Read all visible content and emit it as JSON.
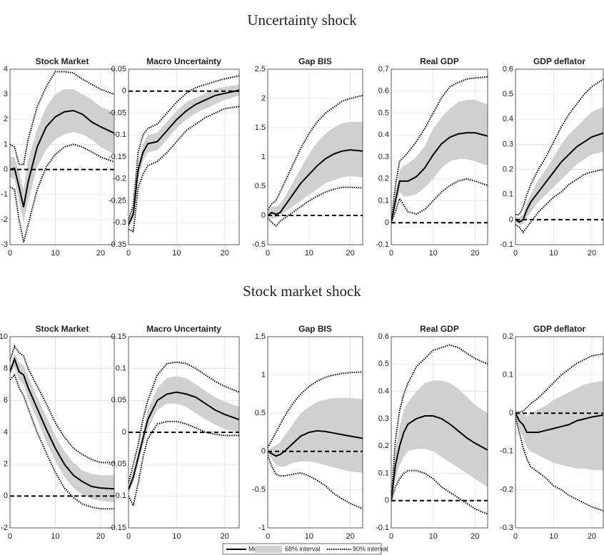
{
  "sections": [
    {
      "title": "Uncertainty shock"
    },
    {
      "title": "Stock market shock"
    }
  ],
  "legend": [
    {
      "name": "Median",
      "color": "#000000"
    },
    {
      "name": "68% interval",
      "color": "#d0d0d0"
    },
    {
      "name": "90% interval",
      "color": "#000000"
    }
  ],
  "chart_data": [
    {
      "type": "line",
      "title": "Stock Market",
      "x": [
        0,
        1,
        2,
        3,
        4,
        6,
        8,
        10,
        12,
        14,
        16,
        18,
        20,
        23
      ],
      "xlim": [
        0,
        23
      ],
      "xticks": [
        0,
        10,
        20
      ],
      "ylim": [
        -3,
        4
      ],
      "yticks": [
        -3,
        -2,
        -1,
        0,
        1,
        2,
        3,
        4
      ],
      "grid": true,
      "zero_line": 0,
      "median": [
        0,
        0.05,
        -0.7,
        -1.5,
        -0.5,
        0.9,
        1.7,
        2.1,
        2.3,
        2.35,
        2.2,
        1.9,
        1.7,
        1.45
      ],
      "lo68": [
        -0.3,
        -0.4,
        -1.3,
        -2.1,
        -1.3,
        0.1,
        0.8,
        1.2,
        1.4,
        1.5,
        1.4,
        1.2,
        0.9,
        0.6
      ],
      "hi68": [
        0.5,
        0.5,
        -0.1,
        -0.8,
        0.4,
        1.6,
        2.5,
        3.0,
        3.2,
        3.2,
        3.0,
        2.8,
        2.5,
        2.3
      ],
      "lo90": [
        -0.7,
        -0.8,
        -2.0,
        -2.9,
        -2.2,
        -0.8,
        0.1,
        0.6,
        0.9,
        1.0,
        0.9,
        0.7,
        0.5,
        0.3
      ],
      "hi90": [
        1.0,
        0.9,
        0.2,
        0.2,
        1.2,
        2.5,
        3.3,
        3.9,
        3.9,
        3.85,
        3.6,
        3.4,
        3.2,
        3.0
      ]
    },
    {
      "type": "line",
      "title": "Macro Uncertainty",
      "x": [
        0,
        1,
        2,
        3,
        4,
        6,
        8,
        10,
        12,
        14,
        16,
        18,
        20,
        23
      ],
      "xlim": [
        0,
        23
      ],
      "xticks": [
        0,
        10,
        20
      ],
      "ylim": [
        -0.35,
        0.05
      ],
      "yticks": [
        -0.35,
        -0.3,
        -0.25,
        -0.2,
        -0.15,
        -0.1,
        -0.05,
        0,
        0.05
      ],
      "grid": true,
      "zero_line": 0,
      "median": [
        -0.305,
        -0.28,
        -0.18,
        -0.14,
        -0.12,
        -0.115,
        -0.09,
        -0.065,
        -0.045,
        -0.03,
        -0.02,
        -0.01,
        -0.005,
        0.002
      ],
      "lo68": [
        -0.31,
        -0.29,
        -0.2,
        -0.16,
        -0.14,
        -0.135,
        -0.11,
        -0.085,
        -0.065,
        -0.05,
        -0.04,
        -0.03,
        -0.02,
        -0.01
      ],
      "hi68": [
        -0.3,
        -0.27,
        -0.16,
        -0.12,
        -0.1,
        -0.095,
        -0.07,
        -0.045,
        -0.025,
        -0.015,
        -0.005,
        0.005,
        0.01,
        0.015
      ],
      "lo90": [
        -0.315,
        -0.32,
        -0.22,
        -0.19,
        -0.17,
        -0.16,
        -0.14,
        -0.115,
        -0.09,
        -0.075,
        -0.06,
        -0.05,
        -0.04,
        -0.035
      ],
      "hi90": [
        -0.295,
        -0.26,
        -0.14,
        -0.1,
        -0.085,
        -0.075,
        -0.05,
        -0.025,
        -0.005,
        0.008,
        0.015,
        0.022,
        0.028,
        0.035
      ]
    },
    {
      "type": "line",
      "title": "Gap BIS",
      "x": [
        0,
        1,
        2,
        3,
        4,
        6,
        8,
        10,
        12,
        14,
        16,
        18,
        20,
        23
      ],
      "xlim": [
        0,
        23
      ],
      "xticks": [
        0,
        10,
        20
      ],
      "ylim": [
        -0.5,
        2.5
      ],
      "yticks": [
        -0.5,
        0,
        0.5,
        1,
        1.5,
        2,
        2.5
      ],
      "grid": true,
      "zero_line": 0,
      "median": [
        0,
        0.05,
        0.02,
        0.05,
        0.15,
        0.35,
        0.55,
        0.7,
        0.85,
        0.97,
        1.05,
        1.1,
        1.12,
        1.1
      ],
      "lo68": [
        -0.05,
        -0.05,
        -0.05,
        -0.02,
        0.05,
        0.15,
        0.25,
        0.35,
        0.45,
        0.55,
        0.6,
        0.65,
        0.67,
        0.65
      ],
      "hi68": [
        0.1,
        0.15,
        0.15,
        0.2,
        0.3,
        0.55,
        0.8,
        1.05,
        1.25,
        1.4,
        1.5,
        1.58,
        1.6,
        1.6
      ],
      "lo90": [
        -0.05,
        -0.12,
        -0.18,
        -0.1,
        -0.05,
        0.05,
        0.15,
        0.25,
        0.33,
        0.4,
        0.45,
        0.48,
        0.48,
        0.47
      ],
      "hi90": [
        0.1,
        0.2,
        0.25,
        0.4,
        0.55,
        0.85,
        1.15,
        1.4,
        1.6,
        1.75,
        1.85,
        1.95,
        2.0,
        2.05
      ]
    },
    {
      "type": "line",
      "title": "Real GDP",
      "x": [
        0,
        1,
        2,
        3,
        4,
        6,
        8,
        10,
        12,
        14,
        16,
        18,
        20,
        23
      ],
      "xlim": [
        0,
        23
      ],
      "xticks": [
        0,
        10,
        20
      ],
      "ylim": [
        -0.1,
        0.7
      ],
      "yticks": [
        -0.1,
        0,
        0.1,
        0.2,
        0.3,
        0.4,
        0.5,
        0.6,
        0.7
      ],
      "grid": true,
      "zero_line": 0,
      "median": [
        0,
        0.1,
        0.19,
        0.19,
        0.19,
        0.21,
        0.25,
        0.31,
        0.36,
        0.39,
        0.405,
        0.41,
        0.41,
        0.395
      ],
      "lo68": [
        0,
        0.07,
        0.14,
        0.12,
        0.12,
        0.13,
        0.16,
        0.2,
        0.25,
        0.28,
        0.29,
        0.29,
        0.28,
        0.26
      ],
      "hi68": [
        0,
        0.13,
        0.24,
        0.26,
        0.27,
        0.3,
        0.35,
        0.43,
        0.48,
        0.52,
        0.55,
        0.56,
        0.56,
        0.54
      ],
      "lo90": [
        0,
        0.05,
        0.11,
        0.08,
        0.05,
        0.04,
        0.06,
        0.1,
        0.14,
        0.17,
        0.19,
        0.2,
        0.19,
        0.17
      ],
      "hi90": [
        0,
        0.17,
        0.28,
        0.3,
        0.32,
        0.37,
        0.43,
        0.5,
        0.57,
        0.62,
        0.64,
        0.655,
        0.66,
        0.665
      ]
    },
    {
      "type": "line",
      "title": "GDP deflator",
      "x": [
        0,
        1,
        2,
        3,
        4,
        6,
        8,
        10,
        12,
        14,
        16,
        18,
        20,
        23
      ],
      "xlim": [
        0,
        23
      ],
      "xticks": [
        0,
        10,
        20
      ],
      "ylim": [
        -0.1,
        0.6
      ],
      "yticks": [
        -0.1,
        0,
        0.1,
        0.2,
        0.3,
        0.4,
        0.5,
        0.6
      ],
      "grid": true,
      "zero_line": 0,
      "median": [
        0,
        -0.01,
        0.0,
        0.04,
        0.07,
        0.11,
        0.15,
        0.19,
        0.23,
        0.26,
        0.29,
        0.31,
        0.33,
        0.345
      ],
      "lo68": [
        -0.01,
        -0.02,
        -0.02,
        0.01,
        0.03,
        0.07,
        0.1,
        0.13,
        0.16,
        0.19,
        0.22,
        0.24,
        0.26,
        0.27
      ],
      "hi68": [
        0.01,
        0.01,
        0.02,
        0.07,
        0.1,
        0.16,
        0.2,
        0.25,
        0.3,
        0.34,
        0.37,
        0.4,
        0.43,
        0.45
      ],
      "lo90": [
        -0.02,
        -0.03,
        -0.05,
        -0.03,
        -0.01,
        0.03,
        0.06,
        0.09,
        0.11,
        0.14,
        0.16,
        0.18,
        0.19,
        0.2
      ],
      "hi90": [
        0.02,
        0.02,
        0.05,
        0.1,
        0.14,
        0.2,
        0.25,
        0.31,
        0.37,
        0.42,
        0.46,
        0.5,
        0.53,
        0.56
      ]
    },
    {
      "type": "line",
      "title": "Stock Market",
      "x": [
        0,
        1,
        2,
        3,
        4,
        6,
        8,
        10,
        12,
        14,
        16,
        18,
        20,
        23
      ],
      "xlim": [
        0,
        23
      ],
      "xticks": [
        0,
        10,
        20
      ],
      "ylim": [
        -2,
        10
      ],
      "yticks": [
        -2,
        0,
        2,
        4,
        6,
        8,
        10
      ],
      "grid": true,
      "zero_line": 0,
      "median": [
        7.8,
        8.6,
        7.8,
        7.6,
        6.8,
        5.5,
        4.2,
        3.0,
        2.0,
        1.3,
        0.9,
        0.6,
        0.5,
        0.45
      ],
      "lo68": [
        7.6,
        8.1,
        7.3,
        7.0,
        6.1,
        4.8,
        3.4,
        2.2,
        1.2,
        0.5,
        0.1,
        -0.2,
        -0.3,
        -0.4
      ],
      "hi68": [
        8.0,
        9.0,
        8.4,
        8.2,
        7.5,
        6.2,
        5.0,
        3.8,
        2.8,
        2.1,
        1.6,
        1.4,
        1.3,
        1.3
      ],
      "lo90": [
        7.3,
        7.6,
        6.8,
        6.3,
        5.5,
        4.0,
        2.7,
        1.5,
        0.5,
        -0.1,
        -0.5,
        -0.7,
        -0.8,
        -0.8
      ],
      "hi90": [
        8.5,
        9.4,
        9.0,
        8.8,
        8.0,
        6.9,
        5.8,
        4.6,
        3.7,
        3.0,
        2.6,
        2.3,
        2.1,
        2.1
      ]
    },
    {
      "type": "line",
      "title": "Macro Uncertainty",
      "x": [
        0,
        1,
        2,
        3,
        4,
        6,
        8,
        10,
        12,
        14,
        16,
        18,
        20,
        23
      ],
      "xlim": [
        0,
        23
      ],
      "xticks": [
        0,
        10,
        20
      ],
      "ylim": [
        -0.15,
        0.15
      ],
      "yticks": [
        -0.15,
        -0.1,
        -0.05,
        0,
        0.05,
        0.1,
        0.15
      ],
      "grid": true,
      "zero_line": 0,
      "median": [
        -0.09,
        -0.07,
        -0.04,
        -0.01,
        0.02,
        0.05,
        0.06,
        0.063,
        0.06,
        0.055,
        0.045,
        0.035,
        0.028,
        0.02
      ],
      "lo68": [
        -0.095,
        -0.08,
        -0.05,
        -0.02,
        0.005,
        0.035,
        0.045,
        0.045,
        0.04,
        0.03,
        0.02,
        0.012,
        0.005,
        0.0
      ],
      "hi68": [
        -0.085,
        -0.06,
        -0.03,
        0.0,
        0.035,
        0.07,
        0.085,
        0.088,
        0.085,
        0.075,
        0.065,
        0.055,
        0.048,
        0.04
      ],
      "lo90": [
        -0.1,
        -0.115,
        -0.08,
        -0.04,
        -0.01,
        0.013,
        0.017,
        0.017,
        0.013,
        0.007,
        0.0,
        -0.003,
        -0.005,
        -0.005
      ],
      "hi90": [
        -0.08,
        -0.05,
        -0.02,
        0.02,
        0.05,
        0.09,
        0.108,
        0.11,
        0.108,
        0.1,
        0.09,
        0.08,
        0.072,
        0.063
      ]
    },
    {
      "type": "line",
      "title": "Gap BIS",
      "x": [
        0,
        1,
        2,
        3,
        4,
        6,
        8,
        10,
        12,
        14,
        16,
        18,
        20,
        23
      ],
      "xlim": [
        0,
        23
      ],
      "xticks": [
        0,
        10,
        20
      ],
      "ylim": [
        -1,
        1.5
      ],
      "yticks": [
        -1,
        -0.5,
        0,
        0.5,
        1,
        1.5
      ],
      "grid": true,
      "zero_line": 0,
      "median": [
        0,
        -0.03,
        -0.06,
        -0.04,
        0.0,
        0.1,
        0.2,
        0.25,
        0.27,
        0.26,
        0.24,
        0.22,
        0.2,
        0.17
      ],
      "lo68": [
        -0.03,
        -0.1,
        -0.18,
        -0.2,
        -0.2,
        -0.15,
        -0.13,
        -0.13,
        -0.15,
        -0.18,
        -0.21,
        -0.24,
        -0.26,
        -0.28
      ],
      "hi68": [
        0.03,
        0.05,
        0.08,
        0.12,
        0.2,
        0.35,
        0.5,
        0.58,
        0.65,
        0.68,
        0.7,
        0.7,
        0.7,
        0.68
      ],
      "lo90": [
        -0.05,
        -0.2,
        -0.3,
        -0.32,
        -0.32,
        -0.3,
        -0.28,
        -0.32,
        -0.38,
        -0.45,
        -0.55,
        -0.62,
        -0.68,
        -0.75
      ],
      "hi90": [
        0.05,
        0.15,
        0.25,
        0.35,
        0.45,
        0.62,
        0.75,
        0.85,
        0.92,
        0.97,
        1.0,
        1.02,
        1.03,
        1.04
      ]
    },
    {
      "type": "line",
      "title": "Real GDP",
      "x": [
        0,
        1,
        2,
        3,
        4,
        6,
        8,
        10,
        12,
        14,
        16,
        18,
        20,
        23
      ],
      "xlim": [
        0,
        23
      ],
      "xticks": [
        0,
        10,
        20
      ],
      "ylim": [
        -0.1,
        0.6
      ],
      "yticks": [
        -0.1,
        0,
        0.1,
        0.2,
        0.3,
        0.4,
        0.5,
        0.6
      ],
      "grid": true,
      "zero_line": 0,
      "median": [
        0,
        0.13,
        0.2,
        0.25,
        0.28,
        0.3,
        0.31,
        0.31,
        0.3,
        0.28,
        0.255,
        0.23,
        0.21,
        0.185
      ],
      "lo68": [
        0,
        0.08,
        0.13,
        0.16,
        0.18,
        0.19,
        0.19,
        0.18,
        0.16,
        0.14,
        0.12,
        0.1,
        0.08,
        0.05
      ],
      "hi68": [
        0,
        0.18,
        0.27,
        0.33,
        0.36,
        0.4,
        0.43,
        0.44,
        0.44,
        0.43,
        0.41,
        0.38,
        0.35,
        0.32
      ],
      "lo90": [
        0,
        0.05,
        0.08,
        0.1,
        0.11,
        0.11,
        0.1,
        0.08,
        0.05,
        0.03,
        0.01,
        -0.01,
        -0.03,
        -0.05
      ],
      "hi90": [
        0,
        0.22,
        0.33,
        0.39,
        0.43,
        0.49,
        0.52,
        0.55,
        0.56,
        0.57,
        0.56,
        0.54,
        0.52,
        0.5
      ]
    },
    {
      "type": "line",
      "title": "GDP deflator",
      "x": [
        0,
        1,
        2,
        3,
        4,
        6,
        8,
        10,
        12,
        14,
        16,
        18,
        20,
        23
      ],
      "xlim": [
        0,
        23
      ],
      "xticks": [
        0,
        10,
        20
      ],
      "ylim": [
        -0.3,
        0.2
      ],
      "yticks": [
        -0.3,
        -0.2,
        -0.1,
        0,
        0.1,
        0.2
      ],
      "grid": true,
      "zero_line": 0,
      "median": [
        0,
        -0.02,
        -0.03,
        -0.05,
        -0.05,
        -0.05,
        -0.045,
        -0.04,
        -0.035,
        -0.03,
        -0.02,
        -0.015,
        -0.01,
        -0.005
      ],
      "lo68": [
        -0.01,
        -0.04,
        -0.06,
        -0.09,
        -0.1,
        -0.11,
        -0.12,
        -0.13,
        -0.135,
        -0.14,
        -0.145,
        -0.145,
        -0.148,
        -0.15
      ],
      "hi68": [
        0.01,
        0.0,
        0.0,
        -0.01,
        0.0,
        0.01,
        0.02,
        0.035,
        0.045,
        0.055,
        0.065,
        0.075,
        0.08,
        0.085
      ],
      "lo90": [
        -0.01,
        -0.05,
        -0.09,
        -0.12,
        -0.14,
        -0.155,
        -0.17,
        -0.19,
        -0.2,
        -0.215,
        -0.225,
        -0.235,
        -0.245,
        -0.255
      ],
      "hi90": [
        0.0,
        0.003,
        0.005,
        0.015,
        0.025,
        0.04,
        0.06,
        0.08,
        0.1,
        0.115,
        0.13,
        0.14,
        0.15,
        0.155
      ]
    }
  ]
}
